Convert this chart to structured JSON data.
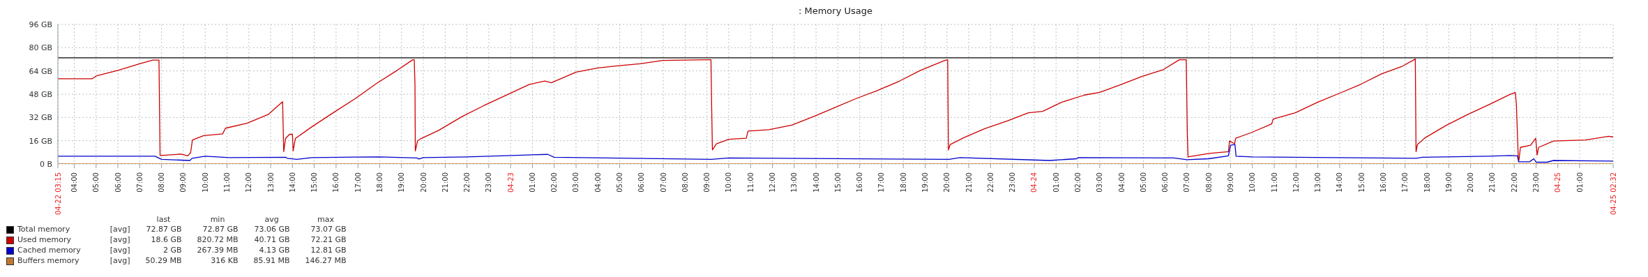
{
  "chart_data": {
    "type": "line",
    "title": ": Memory Usage",
    "xlim": [
      "--04-22T03:15",
      "--04-25T02:32"
    ],
    "xticks": [
      {
        "value": "--04-22T03:15",
        "label": "04-22 03:15"
      },
      {
        "value": "--04-22T04:00",
        "label": "04:00"
      },
      {
        "value": "--04-22T05:00",
        "label": "05:00"
      },
      {
        "value": "--04-22T06:00",
        "label": "06:00"
      },
      {
        "value": "--04-22T07:00",
        "label": "07:00"
      },
      {
        "value": "--04-22T08:00",
        "label": "08:00"
      },
      {
        "value": "--04-22T09:00",
        "label": "09:00"
      },
      {
        "value": "--04-22T10:00",
        "label": "10:00"
      },
      {
        "value": "--04-22T11:00",
        "label": "11:00"
      },
      {
        "value": "--04-22T12:00",
        "label": "12:00"
      },
      {
        "value": "--04-22T13:00",
        "label": "13:00"
      },
      {
        "value": "--04-22T14:00",
        "label": "14:00"
      },
      {
        "value": "--04-22T15:00",
        "label": "15:00"
      },
      {
        "value": "--04-22T16:00",
        "label": "16:00"
      },
      {
        "value": "--04-22T17:00",
        "label": "17:00"
      },
      {
        "value": "--04-22T18:00",
        "label": "18:00"
      },
      {
        "value": "--04-22T19:00",
        "label": "19:00"
      },
      {
        "value": "--04-22T20:00",
        "label": "20:00"
      },
      {
        "value": "--04-22T21:00",
        "label": "21:00"
      },
      {
        "value": "--04-22T22:00",
        "label": "22:00"
      },
      {
        "value": "--04-22T23:00",
        "label": "23:00"
      },
      {
        "value": "--04-23T00:00",
        "label": "04-23"
      },
      {
        "value": "--04-23T01:00",
        "label": "01:00"
      },
      {
        "value": "--04-23T02:00",
        "label": "02:00"
      },
      {
        "value": "--04-23T03:00",
        "label": "03:00"
      },
      {
        "value": "--04-23T04:00",
        "label": "04:00"
      },
      {
        "value": "--04-23T05:00",
        "label": "05:00"
      },
      {
        "value": "--04-23T06:00",
        "label": "06:00"
      },
      {
        "value": "--04-23T07:00",
        "label": "07:00"
      },
      {
        "value": "--04-23T08:00",
        "label": "08:00"
      },
      {
        "value": "--04-23T09:00",
        "label": "09:00"
      },
      {
        "value": "--04-23T10:00",
        "label": "10:00"
      },
      {
        "value": "--04-23T11:00",
        "label": "11:00"
      },
      {
        "value": "--04-23T12:00",
        "label": "12:00"
      },
      {
        "value": "--04-23T13:00",
        "label": "13:00"
      },
      {
        "value": "--04-23T14:00",
        "label": "14:00"
      },
      {
        "value": "--04-23T15:00",
        "label": "15:00"
      },
      {
        "value": "--04-23T16:00",
        "label": "16:00"
      },
      {
        "value": "--04-23T17:00",
        "label": "17:00"
      },
      {
        "value": "--04-23T18:00",
        "label": "18:00"
      },
      {
        "value": "--04-23T19:00",
        "label": "19:00"
      },
      {
        "value": "--04-23T20:00",
        "label": "20:00"
      },
      {
        "value": "--04-23T21:00",
        "label": "21:00"
      },
      {
        "value": "--04-23T22:00",
        "label": "22:00"
      },
      {
        "value": "--04-23T23:00",
        "label": "23:00"
      },
      {
        "value": "--04-24T00:00",
        "label": "04-24"
      },
      {
        "value": "--04-24T01:00",
        "label": "01:00"
      },
      {
        "value": "--04-24T02:00",
        "label": "02:00"
      },
      {
        "value": "--04-24T03:00",
        "label": "03:00"
      },
      {
        "value": "--04-24T04:00",
        "label": "04:00"
      },
      {
        "value": "--04-24T05:00",
        "label": "05:00"
      },
      {
        "value": "--04-24T06:00",
        "label": "06:00"
      },
      {
        "value": "--04-24T07:00",
        "label": "07:00"
      },
      {
        "value": "--04-24T08:00",
        "label": "08:00"
      },
      {
        "value": "--04-24T09:00",
        "label": "09:00"
      },
      {
        "value": "--04-24T10:00",
        "label": "10:00"
      },
      {
        "value": "--04-24T11:00",
        "label": "11:00"
      },
      {
        "value": "--04-24T12:00",
        "label": "12:00"
      },
      {
        "value": "--04-24T13:00",
        "label": "13:00"
      },
      {
        "value": "--04-24T14:00",
        "label": "14:00"
      },
      {
        "value": "--04-24T15:00",
        "label": "15:00"
      },
      {
        "value": "--04-24T16:00",
        "label": "16:00"
      },
      {
        "value": "--04-24T17:00",
        "label": "17:00"
      },
      {
        "value": "--04-24T18:00",
        "label": "18:00"
      },
      {
        "value": "--04-24T19:00",
        "label": "19:00"
      },
      {
        "value": "--04-24T20:00",
        "label": "20:00"
      },
      {
        "value": "--04-24T21:00",
        "label": "21:00"
      },
      {
        "value": "--04-24T22:00",
        "label": "22:00"
      },
      {
        "value": "--04-24T23:00",
        "label": "23:00"
      },
      {
        "value": "--04-25T00:00",
        "label": "04-25"
      },
      {
        "value": "--04-25T01:00",
        "label": "01:00"
      },
      {
        "value": "--04-25T02:32",
        "label": "04-25 02:32"
      }
    ],
    "ylim": [
      0,
      96
    ],
    "yticks": [
      {
        "value": 0,
        "label": "0 B"
      },
      {
        "value": 16,
        "label": "16 GB"
      },
      {
        "value": 32,
        "label": "32 GB"
      },
      {
        "value": 48,
        "label": "48 GB"
      },
      {
        "value": 64,
        "label": "64 GB"
      },
      {
        "value": 80,
        "label": "80 GB"
      },
      {
        "value": 96,
        "label": "96 GB"
      }
    ],
    "grid": true,
    "legend": "bottom left",
    "series": [
      {
        "name": "Total memory",
        "color": "#000000",
        "x": [
          "--04-22T03:15",
          "--04-25T02:32"
        ],
        "values": [
          73,
          73
        ]
      },
      {
        "name": "Used memory",
        "color": "#cc0000",
        "x": [
          "--04-22T03:15",
          "--04-22T04:49",
          "--04-22T05:00",
          "--04-22T06:00",
          "--04-22T07:00",
          "--04-22T07:36",
          "--04-22T07:53",
          "--04-22T07:56",
          "--04-22T07:57",
          "--04-22T08:54",
          "--04-22T09:12",
          "--04-22T09:20",
          "--04-22T09:25",
          "--04-22T09:56",
          "--04-22T10:48",
          "--04-22T10:56",
          "--04-22T11:55",
          "--04-22T12:53",
          "--04-22T13:33",
          "--04-22T13:36",
          "--04-22T13:41",
          "--04-22T13:52",
          "--04-22T14:00",
          "--04-22T14:02",
          "--04-22T14:08",
          "--04-22T14:53",
          "--04-22T15:55",
          "--04-22T16:53",
          "--04-22T17:50",
          "--04-22T18:48",
          "--04-22T19:31",
          "--04-22T19:35",
          "--04-22T19:37",
          "--04-22T19:38",
          "--04-22T19:44",
          "--04-22T19:54",
          "--04-22T20:42",
          "--04-22T21:48",
          "--04-22T22:46",
          "--04-22T23:44",
          "--04-23T00:51",
          "--04-23T01:34",
          "--04-23T01:52",
          "--04-23T03:00",
          "--04-23T04:00",
          "--04-23T04:58",
          "--04-23T05:56",
          "--04-23T06:58",
          "--04-23T08:58",
          "--04-23T09:11",
          "--04-23T09:13",
          "--04-23T09:15",
          "--04-23T09:26",
          "--04-23T10:00",
          "--04-23T10:48",
          "--04-23T10:53",
          "--04-23T11:50",
          "--04-23T12:53",
          "--04-23T13:55",
          "--04-23T14:53",
          "--04-23T15:50",
          "--04-23T16:47",
          "--04-23T17:50",
          "--04-23T18:47",
          "--04-23T19:54",
          "--04-23T20:02",
          "--04-23T20:04",
          "--04-23T20:09",
          "--04-23T20:47",
          "--04-23T21:44",
          "--04-23T22:47",
          "--04-23T23:44",
          "--04-24T00:23",
          "--04-24T01:16",
          "--04-24T02:18",
          "--04-24T03:00",
          "--04-24T03:59",
          "--04-24T04:57",
          "--04-24T05:55",
          "--04-24T06:39",
          "--04-24T06:58",
          "--04-24T07:01",
          "--04-24T07:03",
          "--04-24T08:01",
          "--04-24T08:54",
          "--04-24T08:57",
          "--04-24T09:11",
          "--04-24T09:14",
          "--04-24T09:57",
          "--04-24T10:53",
          "--04-24T10:57",
          "--04-24T11:58",
          "--04-24T13:00",
          "--04-24T13:59",
          "--04-24T14:57",
          "--04-24T15:55",
          "--04-24T16:53",
          "--04-24T17:28",
          "--04-24T17:30",
          "--04-24T17:34",
          "--04-24T17:56",
          "--04-24T18:54",
          "--04-24T19:52",
          "--04-24T20:55",
          "--04-24T21:49",
          "--04-24T22:03",
          "--04-24T22:06",
          "--04-24T22:11",
          "--04-24T22:13",
          "--04-24T22:17",
          "--04-24T22:45",
          "--04-24T22:59",
          "--04-24T23:03",
          "--04-24T23:07",
          "--04-24T23:48",
          "--04-25T01:16",
          "--04-25T02:19",
          "--04-25T02:32"
        ],
        "values": [
          58.6,
          58.6,
          60.5,
          64.4,
          68.9,
          71.5,
          71.5,
          6,
          5.8,
          6.8,
          5.6,
          7.8,
          16.5,
          19.5,
          20.7,
          24.6,
          28,
          34,
          42.8,
          8.5,
          17.5,
          20.4,
          20.4,
          9,
          17.5,
          25.5,
          35.7,
          45,
          55.2,
          64.4,
          71.7,
          71.7,
          54.7,
          9,
          15.8,
          17.5,
          23.1,
          32.8,
          40.1,
          46.9,
          54.7,
          57.1,
          55.9,
          63.2,
          66.1,
          67.6,
          68.9,
          71.2,
          71.7,
          71.7,
          38,
          9.7,
          13.9,
          17,
          17.7,
          22.6,
          23.6,
          26.7,
          32.8,
          38.9,
          45,
          50.3,
          57.1,
          64.4,
          71.2,
          71.7,
          9.7,
          13.4,
          18.2,
          24.3,
          29.7,
          35.2,
          36.2,
          42.5,
          47.4,
          49.3,
          54.7,
          60.3,
          64.9,
          71.7,
          71.7,
          21,
          4.9,
          7.3,
          8.5,
          15.8,
          13.9,
          17.7,
          21.6,
          27.5,
          30.9,
          35.2,
          42.5,
          48.6,
          54.7,
          62,
          67.3,
          72.2,
          8.5,
          13.4,
          18.2,
          26.7,
          34,
          41.3,
          47.9,
          49.1,
          40.8,
          4.9,
          2.4,
          11.4,
          12.9,
          17.7,
          6.1,
          11.4,
          15.8,
          16.5,
          19,
          18.6
        ]
      },
      {
        "name": "Cached memory",
        "color": "#0000cc",
        "x": [
          "--04-22T03:15",
          "--04-22T07:42",
          "--04-22T08:00",
          "--04-22T09:18",
          "--04-22T09:24",
          "--04-22T10:00",
          "--04-22T11:06",
          "--04-22T13:42",
          "--04-22T13:45",
          "--04-22T14:12",
          "--04-22T14:54",
          "--04-22T18:00",
          "--04-22T19:42",
          "--04-22T19:48",
          "--04-22T20:00",
          "--04-22T22:00",
          "--04-23T01:42",
          "--04-23T02:00",
          "--04-23T09:12",
          "--04-23T10:00",
          "--04-23T20:06",
          "--04-23T20:36",
          "--04-24T00:42",
          "--04-24T01:57",
          "--04-24T02:00",
          "--04-24T06:24",
          "--04-24T07:00",
          "--04-24T08:00",
          "--04-24T08:54",
          "--04-24T09:00",
          "--04-24T09:12",
          "--04-24T09:15",
          "--04-24T10:00",
          "--04-24T17:30",
          "--04-24T17:48",
          "--04-24T20:48",
          "--04-24T21:48",
          "--04-24T22:09",
          "--04-24T22:12",
          "--04-24T22:42",
          "--04-24T22:54",
          "--04-24T23:00",
          "--04-24T23:30",
          "--04-24T23:48",
          "--04-25T02:32"
        ],
        "values": [
          5.3,
          5.3,
          3.2,
          2.4,
          3.9,
          5.3,
          4.4,
          4.6,
          3.9,
          3.2,
          4.4,
          4.9,
          4.1,
          3.4,
          4.4,
          4.9,
          6.6,
          4.6,
          3.2,
          4.1,
          3.2,
          4.4,
          2.4,
          3.6,
          4.4,
          4.1,
          2.9,
          3.6,
          5.6,
          12.9,
          13.4,
          5.3,
          4.9,
          3.9,
          4.6,
          5.3,
          5.8,
          5.6,
          1.5,
          1.5,
          3.6,
          1.2,
          1.2,
          2.4,
          2.0
        ]
      },
      {
        "name": "Buffers memory",
        "color": "#c0782f",
        "x": [
          "--04-22T03:15",
          "--04-25T02:32"
        ],
        "values": [
          0.05,
          0.05
        ]
      }
    ],
    "annotations": [
      "last",
      "min",
      "avg",
      "max",
      "[avg]",
      "72.87 GB",
      "72.87 GB",
      "73.06 GB",
      "73.07 GB",
      "[avg]",
      "18.6 GB",
      "820.72 MB",
      "40.71 GB",
      "72.21 GB",
      "[avg]",
      "2 GB",
      "267.39 MB",
      "4.13 GB",
      "12.81 GB",
      "[avg]",
      "50.29 MB",
      "316 KB",
      "85.91 MB",
      "146.27 MB"
    ]
  }
}
